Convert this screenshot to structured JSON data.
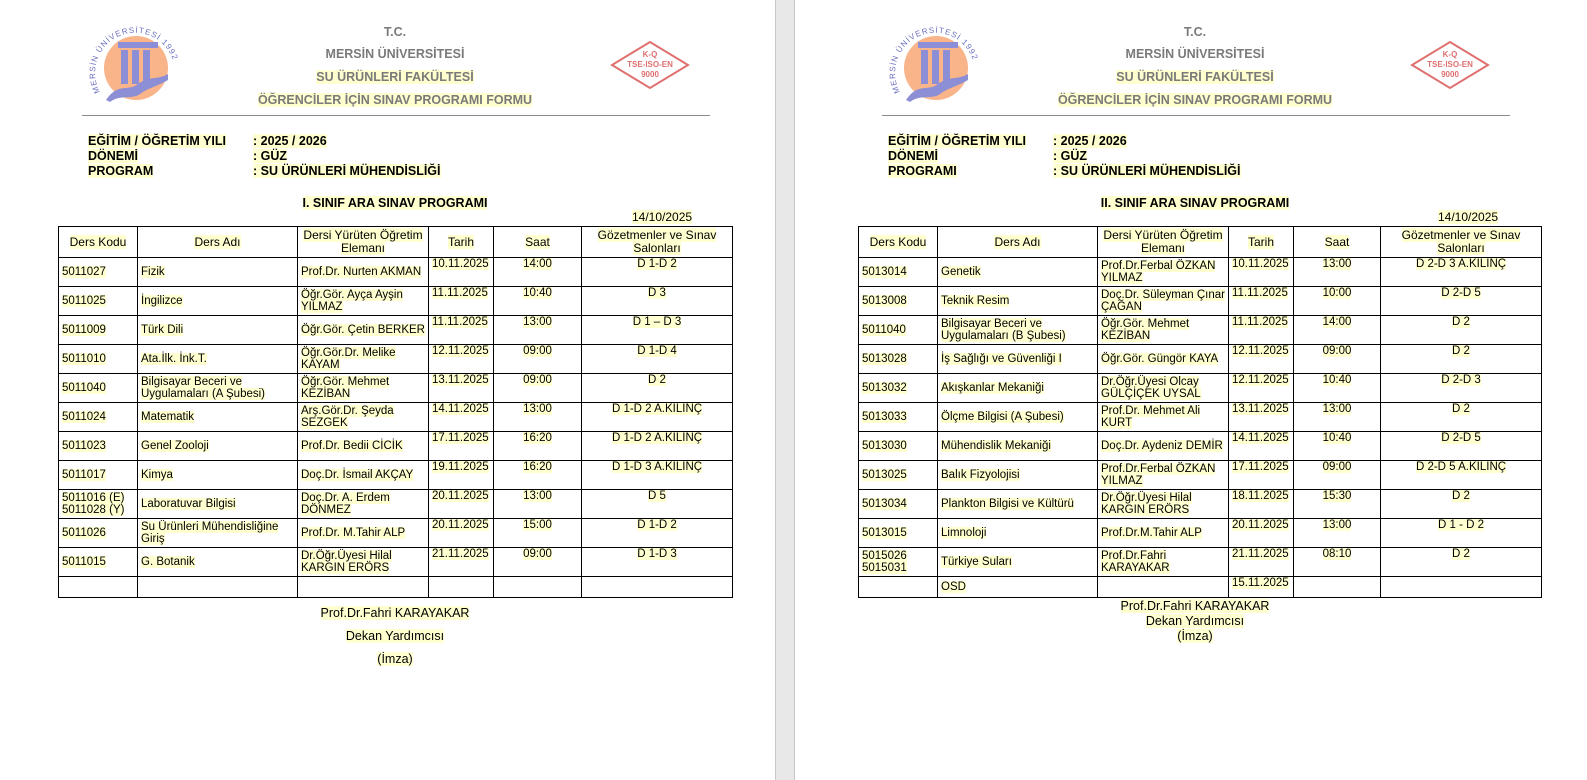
{
  "colors": {
    "highlight": "#ffffd0",
    "header_text": "#7a7a7a",
    "logo_orange": "#f9b48a",
    "logo_blue": "#8c8fd6",
    "tse_red": "#e07070"
  },
  "logos": {
    "university_text": "MERSİN ÜNİVERSİTESİ 1992",
    "tse_lines": [
      "K-Q",
      "TSE-ISO-EN",
      "9000"
    ]
  },
  "pages": [
    {
      "header": {
        "line1": "T.C.",
        "line2": "MERSİN ÜNİVERSİTESİ",
        "line3": "SU ÜRÜNLERİ FAKÜLTESİ",
        "line4": "ÖĞRENCİLER İÇİN SINAV PROGRAMI FORMU"
      },
      "info": [
        {
          "label": "EĞİTİM / ÖĞRETİM YILI",
          "value": ": 2025 / 2026"
        },
        {
          "label": "DÖNEMİ",
          "value": ": GÜZ"
        },
        {
          "label": "PROGRAM",
          "value": ": SU ÜRÜNLERİ MÜHENDİSLİĞİ"
        }
      ],
      "title": "I. SINIF ARA SINAV PROGRAMI",
      "date": "14/10/2025",
      "columns": [
        "Ders Kodu",
        "Ders Adı",
        "Dersi Yürüten Öğretim Elemanı",
        "Tarih",
        "Saat",
        "Gözetmenler ve Sınav Salonları"
      ],
      "rows": [
        [
          "5011027",
          "Fizik",
          "Prof.Dr. Nurten AKMAN",
          "10.11.2025",
          "14:00",
          "D 1-D 2"
        ],
        [
          "5011025",
          "İngilizce",
          "Öğr.Gör. Ayça Ayşin YILMAZ",
          "11.11.2025",
          "10:40",
          "D 3"
        ],
        [
          "5011009",
          "Türk Dili",
          "Öğr.Gör. Çetin BERKER",
          "11.11.2025",
          "13:00",
          "D 1 – D 3"
        ],
        [
          "5011010",
          "Ata.İlk. İnk.T.",
          "Öğr.Gör.Dr. Melike KAYAM",
          "12.11.2025",
          "09:00",
          "D 1-D 4"
        ],
        [
          "5011040",
          "Bilgisayar Beceri ve Uygulamaları (A Şubesi)",
          "Öğr.Gör. Mehmet KEZİBAN",
          "13.11.2025",
          "09:00",
          "D 2"
        ],
        [
          "5011024",
          "Matematik",
          "Arş.Gör.Dr. Şeyda SEZGEK",
          "14.11.2025",
          "13:00",
          "D 1-D 2 A.KILINÇ"
        ],
        [
          "5011023",
          "Genel Zooloji",
          "Prof.Dr. Bedii  CİCİK",
          "17.11.2025",
          "16:20",
          "D 1-D 2 A.KILINÇ"
        ],
        [
          "5011017",
          "Kimya",
          "Doç.Dr. İsmail AKÇAY",
          "19.11.2025",
          "16:20",
          "D 1-D 3 A.KILINÇ"
        ],
        [
          "5011016 (E) 5011028 (Y)",
          "Laboratuvar Bilgisi",
          "Doç.Dr. A. Erdem DÖNMEZ",
          "20.11.2025",
          "13:00",
          "D 5"
        ],
        [
          "5011026",
          "Su Ürünleri Mühendisliğine Giriş",
          "Prof.Dr. M.Tahir ALP",
          "20.11.2025",
          "15:00",
          "D 1-D 2"
        ],
        [
          "5011015",
          "G. Botanik",
          "Dr.Öğr.Üyesi Hilal KARGIN ERÖRS",
          "21.11.2025",
          "09:00",
          "D 1-D 3"
        ],
        [
          "",
          "",
          "",
          "",
          "",
          ""
        ]
      ],
      "signature": {
        "name": "Prof.Dr.Fahri KARAYAKAR",
        "role": "Dekan Yardımcısı",
        "note": "(İmza)"
      }
    },
    {
      "header": {
        "line1": "T.C.",
        "line2": "MERSİN ÜNİVERSİTESİ",
        "line3": "SU ÜRÜNLERİ FAKÜLTESİ",
        "line4": "ÖĞRENCİLER İÇİN SINAV PROGRAMI FORMU"
      },
      "info": [
        {
          "label": "EĞİTİM / ÖĞRETİM YILI",
          "value": ": 2025 / 2026"
        },
        {
          "label": "DÖNEMİ",
          "value": ": GÜZ"
        },
        {
          "label": "PROGRAMI",
          "value": ": SU ÜRÜNLERİ MÜHENDİSLİĞİ"
        }
      ],
      "title": "II. SINIF ARA SINAV PROGRAMI",
      "date": "14/10/2025",
      "columns": [
        "Ders Kodu",
        "Ders Adı",
        "Dersi Yürüten Öğretim Elemanı",
        "Tarih",
        "Saat",
        "Gözetmenler ve Sınav Salonları"
      ],
      "rows": [
        [
          "5013014",
          "Genetik",
          "Prof.Dr.Ferbal ÖZKAN YILMAZ",
          "10.11.2025",
          "13:00",
          "D 2-D 3 A.KILINÇ"
        ],
        [
          "5013008",
          "Teknik Resim",
          "Doç.Dr. Süleyman Çınar ÇAĞAN",
          "11.11.2025",
          "10:00",
          "D 2-D 5"
        ],
        [
          "5011040",
          "Bilgisayar Beceri ve Uygulamaları (B Şubesi)",
          "Öğr.Gör. Mehmet KEZİBAN",
          "11.11.2025",
          "14:00",
          "D 2"
        ],
        [
          "5013028",
          "İş Sağlığı ve Güvenliği I",
          "Öğr.Gör. Güngör KAYA",
          "12.11.2025",
          "09:00",
          "D 2"
        ],
        [
          "5013032",
          "Akışkanlar Mekaniği",
          "Dr.Öğr.Üyesi Olcay GÜLÇİÇEK UYSAL",
          "12.11.2025",
          "10:40",
          "D 2-D 3"
        ],
        [
          "5013033",
          "Ölçme Bilgisi (A Şubesi)",
          "Prof.Dr. Mehmet Ali KURT",
          "13.11.2025",
          "13:00",
          "D 2"
        ],
        [
          "5013030",
          "Mühendislik Mekaniği",
          "Doç.Dr. Aydeniz DEMİR",
          "14.11.2025",
          "10:40",
          "D 2-D 5"
        ],
        [
          "5013025",
          "Balık Fizyolojisi",
          "Prof.Dr.Ferbal ÖZKAN YILMAZ",
          "17.11.2025",
          "09:00",
          "D 2-D 5 A.KILINÇ"
        ],
        [
          "5013034",
          "Plankton Bilgisi ve Kültürü",
          "Dr.Öğr.Üyesi Hilal KARGIN ERÖRS",
          "18.11.2025",
          "15:30",
          "D 2"
        ],
        [
          "5013015",
          "Limnoloji",
          "Prof.Dr.M.Tahir ALP",
          "20.11.2025",
          "13:00",
          "D 1 - D 2"
        ],
        [
          "5015026 5015031",
          "Türkiye Suları",
          "Prof.Dr.Fahri KARAYAKAR",
          "21.11.2025",
          "08:10",
          "D 2"
        ],
        [
          "",
          "OSD",
          "",
          "15.11.2025",
          "",
          ""
        ]
      ],
      "signature": {
        "name": "Prof.Dr.Fahri KARAYAKAR",
        "role": "Dekan Yardımcısı",
        "note": "(İmza)"
      }
    }
  ]
}
